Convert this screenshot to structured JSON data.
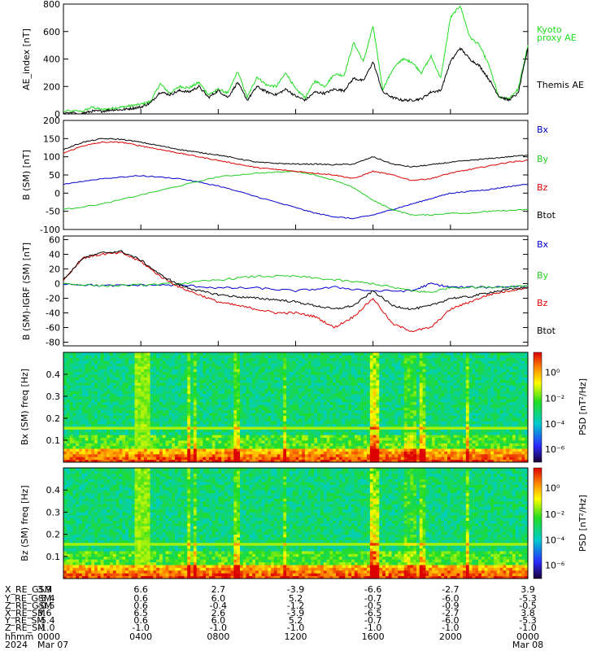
{
  "page": {
    "title": ""
  },
  "ephemeris": {
    "rows": [
      {
        "label": "X_RE_GSM",
        "values": [
          "3.9",
          "6.6",
          "2.7",
          "-3.9",
          "-6.6",
          "-2.7",
          "3.9"
        ]
      },
      {
        "label": "Y_RE_GSM",
        "values": [
          "-5.4",
          "0.6",
          "6.0",
          "5.2",
          "-0.7",
          "-6.0",
          "-5.3"
        ]
      },
      {
        "label": "Z_RE_GSM",
        "values": [
          "-0.5",
          "0.6",
          "-0.4",
          "-1.2",
          "-0.5",
          "-0.9",
          "-0.5"
        ]
      },
      {
        "label": "X_RE_SM",
        "values": [
          "3.6",
          "6.5",
          "2.6",
          "-3.9",
          "-6.5",
          "-2.7",
          "3.8"
        ]
      },
      {
        "label": "Y_RE_SM",
        "values": [
          "-5.4",
          "0.6",
          "6.0",
          "5.2",
          "-0.7",
          "-6.0",
          "-5.3"
        ]
      },
      {
        "label": "Z_RE_SM",
        "values": [
          "-1.0",
          "-1.0",
          "-1.0",
          "-1.0",
          "-1.0",
          "-1.0",
          "-1.0"
        ]
      },
      {
        "label": "hhmm",
        "values": [
          "0000",
          "0400",
          "0800",
          "1200",
          "1600",
          "2000",
          "0000"
        ]
      },
      {
        "label": "2024",
        "values": [
          "Mar 07",
          "",
          "",
          "",
          "",
          "",
          "Mar 08"
        ]
      }
    ]
  },
  "chart_data": [
    {
      "type": "line",
      "ylabel": "AE_index [nT]",
      "ylim": [
        0,
        800
      ],
      "yticks": [
        "800",
        "600",
        "400",
        "200",
        "0"
      ],
      "x_hours": [
        0,
        24
      ],
      "series": [
        {
          "name": "Kyoto proxy AE",
          "color": "#22dd22",
          "x": [
            0,
            1,
            1.5,
            2,
            2.5,
            3,
            3.5,
            4,
            4.5,
            5,
            5.5,
            6,
            6.5,
            7,
            7.5,
            8,
            8.5,
            9,
            9.5,
            10,
            10.5,
            11,
            11.5,
            12,
            12.5,
            13,
            13.5,
            14,
            14.5,
            15,
            15.5,
            16,
            16.5,
            17,
            17.5,
            18,
            18.5,
            19,
            19.5,
            20,
            20.5,
            21,
            21.5,
            22,
            22.5,
            23,
            23.5,
            24
          ],
          "values": [
            20,
            20,
            50,
            30,
            40,
            50,
            60,
            70,
            90,
            220,
            150,
            200,
            190,
            230,
            140,
            180,
            150,
            310,
            120,
            270,
            210,
            200,
            300,
            180,
            120,
            240,
            200,
            290,
            280,
            520,
            380,
            640,
            180,
            320,
            400,
            380,
            300,
            420,
            260,
            700,
            790,
            560,
            500,
            350,
            120,
            110,
            180,
            500
          ]
        },
        {
          "name": "Themis AE",
          "color": "#000000",
          "x": [
            0,
            1,
            1.5,
            2,
            2.5,
            3,
            3.5,
            4,
            4.5,
            5,
            5.5,
            6,
            6.5,
            7,
            7.5,
            8,
            8.5,
            9,
            9.5,
            10,
            10.5,
            11,
            11.5,
            12,
            12.5,
            13,
            13.5,
            14,
            14.5,
            15,
            15.5,
            16,
            16.5,
            17,
            17.5,
            18,
            18.5,
            19,
            19.5,
            20,
            20.5,
            21,
            21.5,
            22,
            22.5,
            23,
            23.5,
            24
          ],
          "values": [
            5,
            5,
            20,
            20,
            30,
            30,
            40,
            50,
            80,
            160,
            140,
            170,
            160,
            200,
            120,
            170,
            120,
            230,
            100,
            200,
            160,
            140,
            180,
            130,
            100,
            160,
            150,
            180,
            170,
            260,
            240,
            380,
            160,
            120,
            100,
            100,
            110,
            160,
            170,
            380,
            480,
            400,
            350,
            250,
            130,
            100,
            150,
            480
          ]
        }
      ]
    },
    {
      "type": "line",
      "ylabel": "B (SM) [nT]",
      "ylim": [
        -100,
        200
      ],
      "yticks": [
        "200",
        "150",
        "100",
        "50",
        "0",
        "-50",
        "-100"
      ],
      "x_hours": [
        0,
        24
      ],
      "series": [
        {
          "name": "Bx",
          "color": "#0000cc",
          "x": [
            0,
            2,
            4,
            6,
            8,
            10,
            12,
            13,
            14,
            15,
            16,
            17,
            18,
            19,
            20,
            21,
            22,
            23,
            24
          ],
          "values": [
            25,
            40,
            48,
            40,
            20,
            -10,
            -40,
            -55,
            -65,
            -70,
            -60,
            -45,
            -30,
            -15,
            0,
            5,
            10,
            18,
            25
          ]
        },
        {
          "name": "By",
          "color": "#22cc22",
          "x": [
            0,
            2,
            4,
            6,
            8,
            10,
            12,
            13,
            14,
            15,
            16,
            17,
            18,
            19,
            20,
            21,
            22,
            23,
            24
          ],
          "values": [
            -45,
            -30,
            -5,
            20,
            45,
            55,
            60,
            50,
            35,
            15,
            -20,
            -45,
            -60,
            -60,
            -55,
            -55,
            -50,
            -48,
            -45
          ]
        },
        {
          "name": "Bz",
          "color": "#dd0000",
          "x": [
            0,
            1,
            2,
            3,
            4,
            5,
            6,
            7,
            8,
            9,
            10,
            11,
            12,
            13,
            14,
            15,
            16,
            17,
            18,
            19,
            20,
            21,
            22,
            23,
            24
          ],
          "values": [
            110,
            130,
            140,
            140,
            130,
            120,
            110,
            100,
            90,
            80,
            70,
            65,
            60,
            55,
            50,
            40,
            60,
            50,
            35,
            40,
            55,
            65,
            75,
            85,
            90
          ]
        },
        {
          "name": "Btot",
          "color": "#000000",
          "x": [
            0,
            1,
            2,
            3,
            4,
            5,
            6,
            7,
            8,
            9,
            10,
            11,
            12,
            13,
            14,
            15,
            16,
            17,
            18,
            19,
            20,
            21,
            22,
            23,
            24
          ],
          "values": [
            120,
            140,
            150,
            148,
            140,
            130,
            120,
            112,
            105,
            95,
            85,
            82,
            80,
            80,
            78,
            80,
            100,
            80,
            72,
            78,
            85,
            90,
            95,
            100,
            105
          ]
        }
      ]
    },
    {
      "type": "line",
      "ylabel": "B (SM)-IGRF (SM) [nT]",
      "ylim": [
        -85,
        65
      ],
      "yticks": [
        "60",
        "40",
        "20",
        "0",
        "-20",
        "-40",
        "-60",
        "-80"
      ],
      "x_hours": [
        0,
        24
      ],
      "series": [
        {
          "name": "Bx",
          "color": "#0000cc",
          "x": [
            0,
            2,
            4,
            6,
            8,
            10,
            12,
            14,
            16,
            18,
            19,
            20,
            22,
            24
          ],
          "values": [
            0,
            -3,
            -2,
            -2,
            -6,
            -6,
            -10,
            -5,
            -10,
            -10,
            0,
            -5,
            -5,
            -3
          ]
        },
        {
          "name": "By",
          "color": "#22cc22",
          "x": [
            0,
            2,
            4,
            6,
            8,
            10,
            12,
            14,
            16,
            18,
            19,
            20,
            22,
            24
          ],
          "values": [
            0,
            -3,
            -2,
            0,
            5,
            10,
            10,
            5,
            0,
            -10,
            -12,
            -5,
            -5,
            -3
          ]
        },
        {
          "name": "Bz",
          "color": "#dd0000",
          "x": [
            0,
            1,
            2,
            3,
            4,
            5,
            6,
            7,
            8,
            9,
            10,
            11,
            12,
            13,
            14,
            15,
            16,
            17,
            18,
            19,
            20,
            21,
            22,
            23,
            24
          ],
          "values": [
            5,
            35,
            40,
            42,
            30,
            10,
            -5,
            -15,
            -25,
            -30,
            -35,
            -40,
            -40,
            -45,
            -60,
            -45,
            -20,
            -55,
            -65,
            -60,
            -35,
            -25,
            -15,
            -10,
            -5
          ]
        },
        {
          "name": "Btot",
          "color": "#000000",
          "x": [
            0,
            1,
            2,
            3,
            4,
            5,
            6,
            7,
            8,
            9,
            10,
            11,
            12,
            13,
            14,
            15,
            16,
            17,
            18,
            19,
            20,
            21,
            22,
            23,
            24
          ],
          "values": [
            5,
            35,
            42,
            44,
            32,
            12,
            -2,
            -10,
            -15,
            -18,
            -20,
            -22,
            -25,
            -30,
            -35,
            -30,
            -10,
            -30,
            -35,
            -30,
            -20,
            -18,
            -12,
            -8,
            -5
          ]
        }
      ]
    },
    {
      "type": "heatmap",
      "ylabel": "Bx (SM) freq [Hz]",
      "ylim": [
        0,
        0.5
      ],
      "yticks": [
        "0.4",
        "0.3",
        "0.2",
        "0.1"
      ],
      "colorbar_label": "PSD [nT²/Hz]",
      "colorbar_ticks": [
        "10⁰",
        "10⁻²",
        "10⁻⁴",
        "10⁻⁶"
      ],
      "x_hours": [
        0,
        24
      ]
    },
    {
      "type": "heatmap",
      "ylabel": "Bz (SM) freq [Hz]",
      "ylim": [
        0,
        0.5
      ],
      "yticks": [
        "0.4",
        "0.3",
        "0.2",
        "0.1"
      ],
      "colorbar_label": "PSD [nT²/Hz]",
      "colorbar_ticks": [
        "10⁰",
        "10⁻²",
        "10⁻⁴",
        "10⁻⁶"
      ],
      "x_hours": [
        0,
        24
      ]
    }
  ],
  "legends": {
    "p1": [
      {
        "text": "Kyoto",
        "color": "#22dd22"
      },
      {
        "text": "proxy AE",
        "color": "#22dd22"
      },
      {
        "text": "Themis AE",
        "color": "#000000"
      }
    ],
    "p2": [
      {
        "text": "Bx",
        "color": "#0000cc"
      },
      {
        "text": "By",
        "color": "#22cc22"
      },
      {
        "text": "Bz",
        "color": "#dd0000"
      },
      {
        "text": "Btot",
        "color": "#000000"
      }
    ],
    "p3": [
      {
        "text": "Bx",
        "color": "#0000cc"
      },
      {
        "text": "By",
        "color": "#22cc22"
      },
      {
        "text": "Bz",
        "color": "#dd0000"
      },
      {
        "text": "Btot",
        "color": "#000000"
      }
    ]
  }
}
